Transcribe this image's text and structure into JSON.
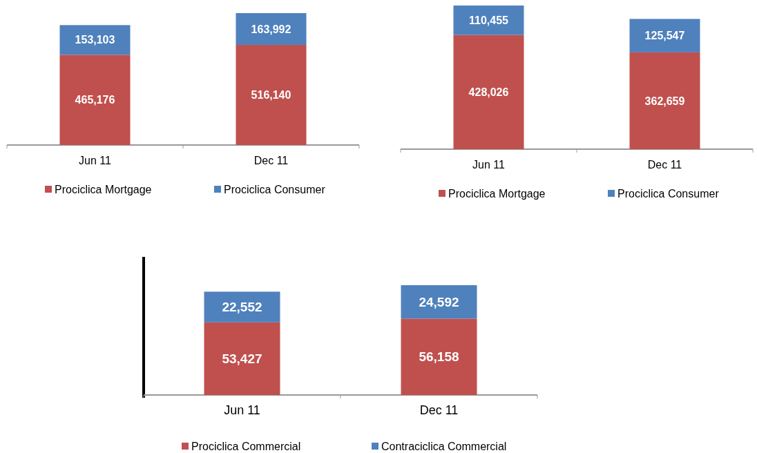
{
  "chart_data": [
    {
      "type": "bar",
      "stacked": true,
      "legend": "bottom",
      "categories": [
        "Jun 11",
        "Dec 11"
      ],
      "series": [
        {
          "name": "Prociclica Mortgage",
          "color": "#c0504d",
          "values": [
            465176,
            516140
          ],
          "value_labels": [
            "465,176",
            "516,140"
          ]
        },
        {
          "name": "Prociclica Consumer",
          "color": "#4f81bd",
          "values": [
            153103,
            163992
          ],
          "value_labels": [
            "153,103",
            "163,992"
          ]
        }
      ]
    },
    {
      "type": "bar",
      "stacked": true,
      "legend": "bottom",
      "categories": [
        "Jun 11",
        "Dec 11"
      ],
      "series": [
        {
          "name": "Prociclica Mortgage",
          "color": "#c0504d",
          "values": [
            428026,
            362659
          ],
          "value_labels": [
            "428,026",
            "362,659"
          ]
        },
        {
          "name": "Prociclica Consumer",
          "color": "#4f81bd",
          "values": [
            110455,
            125547
          ],
          "value_labels": [
            "110,455",
            "125,547"
          ]
        }
      ]
    },
    {
      "type": "bar",
      "stacked": true,
      "legend": "bottom",
      "categories": [
        "Jun 11",
        "Dec 11"
      ],
      "series": [
        {
          "name": "Prociclica Commercial",
          "color": "#c0504d",
          "values": [
            53427,
            56158
          ],
          "value_labels": [
            "53,427",
            "56,158"
          ]
        },
        {
          "name": "Contraciclica Commercial",
          "color": "#4f81bd",
          "values": [
            22552,
            24592
          ],
          "value_labels": [
            "22,552",
            "24,592"
          ]
        }
      ]
    }
  ]
}
